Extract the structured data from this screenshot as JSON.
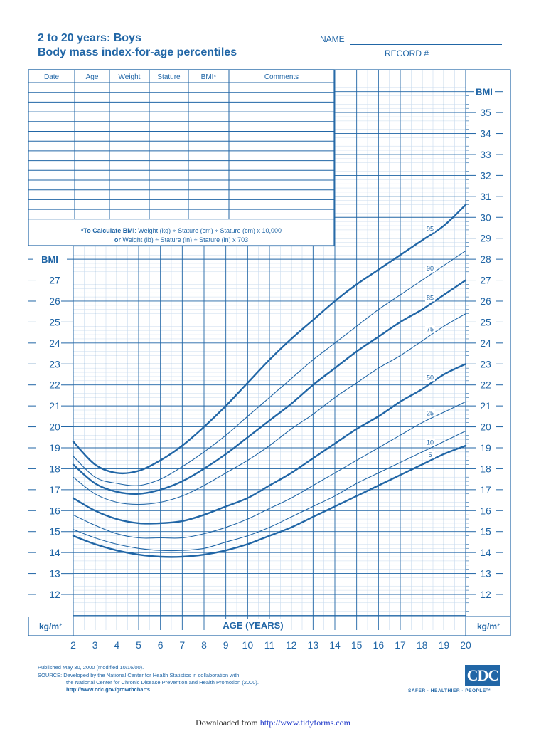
{
  "header": {
    "title_line1": "2 to 20 years: Boys",
    "title_line2": "Body mass index-for-age percentiles",
    "name_label": "NAME",
    "record_label": "RECORD #"
  },
  "record_table": {
    "columns": [
      "Date",
      "Age",
      "Weight",
      "Stature",
      "BMI*",
      "Comments"
    ],
    "empty_rows": 14,
    "formula_line1_bold": "*To Calculate BMI",
    "formula_line1": ": Weight (kg) ÷ Stature (cm) ÷ Stature (cm) x 10,000",
    "formula_line2_bold": "or",
    "formula_line2": " Weight (lb) ÷ Stature (in) ÷ Stature (in) x 703"
  },
  "axes": {
    "y_label": "BMI",
    "unit_label": "kg/m²",
    "x_label": "AGE (YEARS)"
  },
  "chart_data": {
    "type": "line",
    "title": "2 to 20 years: Boys — Body mass index-for-age percentiles",
    "xlabel": "AGE (YEARS)",
    "ylabel": "BMI (kg/m²)",
    "x": [
      2,
      3,
      4,
      5,
      6,
      7,
      8,
      9,
      10,
      11,
      12,
      13,
      14,
      15,
      16,
      17,
      18,
      19,
      20
    ],
    "xlim": [
      2,
      20
    ],
    "ylim": [
      12,
      35
    ],
    "left_yticks": [
      12,
      13,
      14,
      15,
      16,
      17,
      18,
      19,
      20,
      21,
      22,
      23,
      24,
      25,
      26,
      27
    ],
    "right_yticks": [
      12,
      13,
      14,
      15,
      16,
      17,
      18,
      19,
      20,
      21,
      22,
      23,
      24,
      25,
      26,
      27,
      28,
      29,
      30,
      31,
      32,
      33,
      34,
      35
    ],
    "grid": true,
    "series": [
      {
        "name": "95",
        "bold": true,
        "values": [
          19.3,
          18.2,
          17.8,
          17.9,
          18.4,
          19.1,
          20.0,
          21.0,
          22.1,
          23.2,
          24.2,
          25.1,
          26.0,
          26.8,
          27.5,
          28.2,
          28.9,
          29.6,
          30.6
        ]
      },
      {
        "name": "90",
        "bold": false,
        "values": [
          18.6,
          17.6,
          17.3,
          17.2,
          17.5,
          18.1,
          18.8,
          19.6,
          20.5,
          21.4,
          22.3,
          23.2,
          24.0,
          24.8,
          25.6,
          26.3,
          27.0,
          27.7,
          28.4
        ]
      },
      {
        "name": "85",
        "bold": true,
        "values": [
          18.2,
          17.3,
          16.9,
          16.8,
          17.0,
          17.4,
          18.0,
          18.7,
          19.5,
          20.3,
          21.1,
          22.0,
          22.8,
          23.6,
          24.3,
          25.0,
          25.6,
          26.3,
          27.0
        ]
      },
      {
        "name": "75",
        "bold": false,
        "values": [
          17.6,
          16.8,
          16.4,
          16.3,
          16.4,
          16.7,
          17.2,
          17.8,
          18.4,
          19.1,
          19.9,
          20.6,
          21.4,
          22.1,
          22.8,
          23.4,
          24.1,
          24.8,
          25.4
        ]
      },
      {
        "name": "50",
        "bold": true,
        "values": [
          16.6,
          16.0,
          15.6,
          15.4,
          15.4,
          15.5,
          15.8,
          16.2,
          16.6,
          17.2,
          17.8,
          18.5,
          19.2,
          19.9,
          20.5,
          21.2,
          21.8,
          22.5,
          23.0
        ]
      },
      {
        "name": "25",
        "bold": false,
        "values": [
          15.8,
          15.3,
          14.9,
          14.7,
          14.7,
          14.7,
          14.9,
          15.2,
          15.6,
          16.1,
          16.6,
          17.2,
          17.8,
          18.4,
          19.0,
          19.6,
          20.2,
          20.7,
          21.2
        ]
      },
      {
        "name": "10",
        "bold": false,
        "values": [
          15.1,
          14.7,
          14.4,
          14.2,
          14.1,
          14.1,
          14.2,
          14.5,
          14.8,
          15.2,
          15.7,
          16.2,
          16.7,
          17.3,
          17.8,
          18.3,
          18.8,
          19.3,
          19.8
        ]
      },
      {
        "name": "5",
        "bold": true,
        "values": [
          14.8,
          14.4,
          14.1,
          13.9,
          13.8,
          13.8,
          13.9,
          14.1,
          14.4,
          14.8,
          15.2,
          15.7,
          16.2,
          16.7,
          17.2,
          17.7,
          18.2,
          18.7,
          19.1
        ]
      }
    ],
    "annotations": [
      "95",
      "90",
      "85",
      "75",
      "50",
      "25",
      "10",
      "5"
    ],
    "color": "#2166a6"
  },
  "footer": {
    "published": "Published May 30, 2000 (modified 10/16/00).",
    "source_line1": "SOURCE: Developed by the National Center for Health Statistics in collaboration with",
    "source_line2": "the National Center for Chronic Disease Prevention and Health Promotion (2000).",
    "url": "http://www.cdc.gov/growthcharts",
    "logo_text": "CDC",
    "logo_tagline": "SAFER · HEALTHIER · PEOPLE™",
    "download_prefix": "Downloaded from ",
    "download_link": "http://www.tidyforms.com"
  }
}
